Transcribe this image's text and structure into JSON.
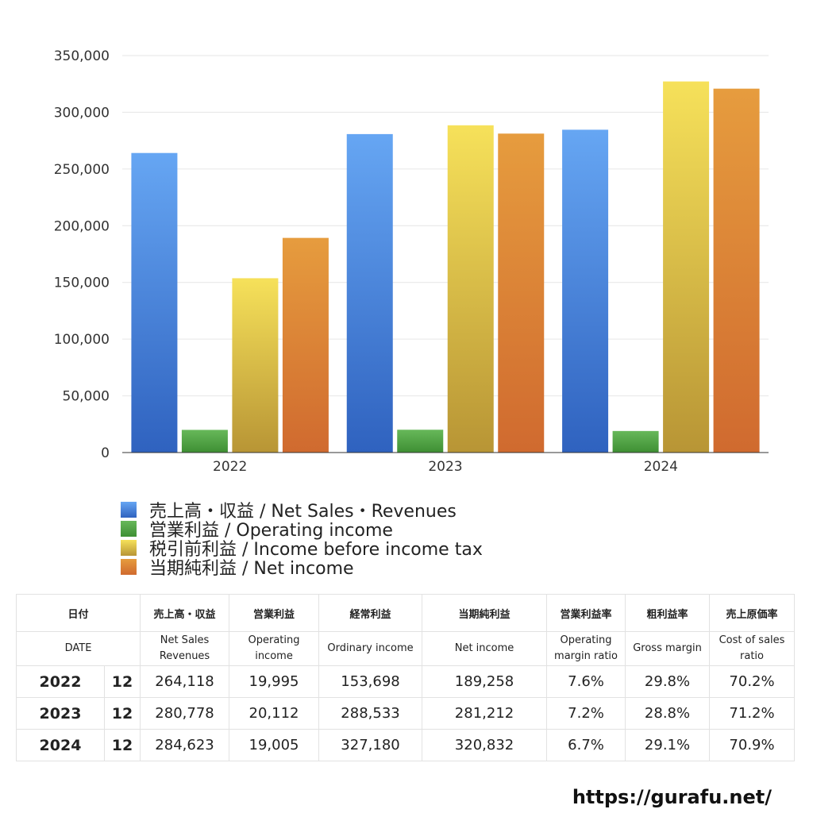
{
  "chart_data": {
    "type": "bar",
    "categories": [
      "2022",
      "2023",
      "2024"
    ],
    "series": [
      {
        "name": "売上高・収益 / Net Sales・Revenues",
        "values": [
          264118,
          280778,
          284623
        ],
        "color_top": "#66a6f3",
        "color_bottom": "#2f62bf"
      },
      {
        "name": "営業利益 / Operating income",
        "values": [
          19995,
          20112,
          19005
        ],
        "color_top": "#67b85a",
        "color_bottom": "#3e8f33"
      },
      {
        "name": "税引前利益 / Income before income tax",
        "values": [
          153698,
          288533,
          327180
        ],
        "color_top": "#f6e15a",
        "color_bottom": "#b89535"
      },
      {
        "name": "当期純利益 / Net income",
        "values": [
          189258,
          281212,
          320832
        ],
        "color_top": "#e69c3e",
        "color_bottom": "#d06a2f"
      }
    ],
    "yticks": [
      "0",
      "50,000",
      "100,000",
      "150,000",
      "200,000",
      "250,000",
      "300,000",
      "350,000"
    ],
    "ylim": [
      0,
      350000
    ],
    "grid": true,
    "legend_position": "bottom-left"
  },
  "legend": [
    {
      "label": "売上高・収益 / Net Sales・Revenues",
      "color": "#4f8de0"
    },
    {
      "label": "営業利益 / Operating income",
      "color": "#4fa244"
    },
    {
      "label": "税引前利益 / Income before income tax",
      "color": "#e4c94a"
    },
    {
      "label": "当期純利益 / Net income",
      "color": "#dc8236"
    }
  ],
  "table": {
    "header_jp": [
      "日付",
      "売上高・収益",
      "営業利益",
      "経常利益",
      "当期純利益",
      "営業利益率",
      "粗利益率",
      "売上原価率"
    ],
    "header_en": [
      "DATE",
      "Net Sales\nRevenues",
      "Operating\nincome",
      "Ordinary income",
      "Net income",
      "Operating\nmargin ratio",
      "Gross margin",
      "Cost of sales\nratio"
    ],
    "rows": [
      {
        "year": "2022",
        "month": "12",
        "cells": [
          "264,118",
          "19,995",
          "153,698",
          "189,258",
          "7.6%",
          "29.8%",
          "70.2%"
        ]
      },
      {
        "year": "2023",
        "month": "12",
        "cells": [
          "280,778",
          "20,112",
          "288,533",
          "281,212",
          "7.2%",
          "28.8%",
          "71.2%"
        ]
      },
      {
        "year": "2024",
        "month": "12",
        "cells": [
          "284,623",
          "19,005",
          "327,180",
          "320,832",
          "6.7%",
          "29.1%",
          "70.9%"
        ]
      }
    ]
  },
  "footer": {
    "url": "https://gurafu.net/"
  }
}
